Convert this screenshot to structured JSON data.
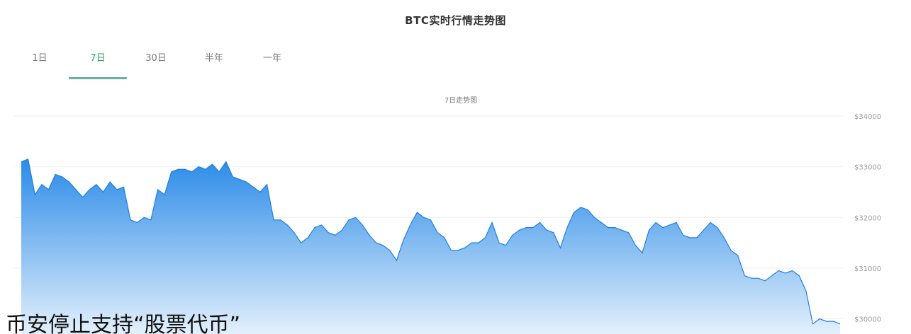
{
  "header": {
    "title": "BTC实时行情走势图"
  },
  "tabs": [
    {
      "label": "1日",
      "active": false
    },
    {
      "label": "7日",
      "active": true
    },
    {
      "label": "30日",
      "active": false
    },
    {
      "label": "半年",
      "active": false
    },
    {
      "label": "一年",
      "active": false
    }
  ],
  "overlay": {
    "headline": "币安停止支持“股票代币”"
  },
  "colors": {
    "accent": "#2a9d6e",
    "area_top": "#2b8be8",
    "area_bottom": "#e3f0fc",
    "grid": "#eeeeee"
  },
  "chart_data": {
    "type": "area",
    "title": "7日走势图",
    "y_axis_position": "right",
    "ylim": [
      29700,
      34000
    ],
    "y_ticks": [
      {
        "value": 34000,
        "label": "$34000"
      },
      {
        "value": 33000,
        "label": "$33000"
      },
      {
        "value": 32000,
        "label": "$32000"
      },
      {
        "value": 31000,
        "label": "$31000"
      },
      {
        "value": 30000,
        "label": "$30000"
      }
    ],
    "grid": true,
    "series": [
      {
        "values": [
          33100,
          33150,
          32450,
          32650,
          32550,
          32850,
          32800,
          32700,
          32550,
          32400,
          32550,
          32650,
          32500,
          32700,
          32550,
          32600,
          31950,
          31900,
          32000,
          31950,
          32550,
          32450,
          32900,
          32950,
          32950,
          32900,
          33000,
          32950,
          33050,
          32900,
          33100,
          32800,
          32750,
          32700,
          32600,
          32500,
          32650,
          31950,
          31950,
          31850,
          31700,
          31500,
          31600,
          31800,
          31850,
          31700,
          31650,
          31750,
          31950,
          32000,
          31850,
          31650,
          31500,
          31450,
          31350,
          31150,
          31550,
          31850,
          32100,
          32000,
          31950,
          31700,
          31600,
          31350,
          31350,
          31400,
          31500,
          31500,
          31600,
          31900,
          31500,
          31450,
          31650,
          31750,
          31800,
          31800,
          31900,
          31750,
          31700,
          31400,
          31800,
          32100,
          32200,
          32150,
          32000,
          31900,
          31800,
          31800,
          31750,
          31700,
          31450,
          31300,
          31750,
          31900,
          31800,
          31850,
          31900,
          31650,
          31600,
          31600,
          31750,
          31900,
          31800,
          31600,
          31350,
          31250,
          30850,
          30800,
          30800,
          30750,
          30850,
          30950,
          30900,
          30950,
          30850,
          30550,
          29900,
          30000,
          29950,
          29950,
          29900
        ]
      }
    ]
  }
}
